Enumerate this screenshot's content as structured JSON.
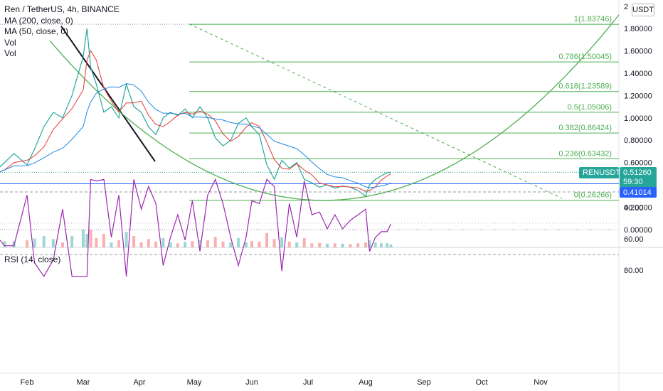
{
  "legend": {
    "symbol": "Ren / TetherUS, 4h, BINANCE",
    "ma200": "MA (200, close, 0)",
    "ma50": "MA (50, close, 0)",
    "vol1": "Vol",
    "vol2": "Vol"
  },
  "rsi_label": "RSI (14, close)",
  "currency_button": "USDT",
  "top_tick": "2",
  "price_tag": {
    "symbol": "RENUSDT",
    "price": "0.51260",
    "countdown": "59:30",
    "color": "#26a69a"
  },
  "level_tag": {
    "value": "0.41014",
    "color": "#2962ff"
  },
  "chart_data": [
    {
      "type": "line",
      "panel": "price",
      "y_ticks": [
        "0.00000",
        "0.20000",
        "0.40000",
        "0.60000",
        "0.80000",
        "1.00000",
        "1.20000",
        "1.40000",
        "1.60000",
        "1.80000"
      ],
      "y_range": [
        -0.05,
        2.05
      ],
      "x_ticks": [
        "Feb",
        "Mar",
        "Apr",
        "May",
        "Jun",
        "Jul",
        "Aug",
        "Sep",
        "Oct",
        "Nov"
      ],
      "fib_levels": [
        {
          "label": "1(1.83746)",
          "value": 1.83746
        },
        {
          "label": "0.786(1.50045)",
          "value": 1.50045
        },
        {
          "label": "0.618(1.23589)",
          "value": 1.23589
        },
        {
          "label": "0.5(1.05006)",
          "value": 1.05006
        },
        {
          "label": "0.382(0.86424)",
          "value": 0.86424
        },
        {
          "label": "0.236(0.63432)",
          "value": 0.63432
        },
        {
          "label": "0(0.26266)",
          "value": 0.26266
        }
      ],
      "price_series": [
        [
          "Jan 10",
          0.48
        ],
        [
          "Jan 15",
          0.52
        ],
        [
          "Jan 20",
          0.6
        ],
        [
          "Jan 25",
          0.68
        ],
        [
          "Feb 1",
          0.58
        ],
        [
          "Feb 5",
          0.72
        ],
        [
          "Feb 10",
          0.92
        ],
        [
          "Feb 15",
          1.05
        ],
        [
          "Feb 20",
          1.0
        ],
        [
          "Feb 25",
          1.2
        ],
        [
          "Mar 1",
          1.55
        ],
        [
          "Mar 3",
          1.8
        ],
        [
          "Mar 5",
          1.45
        ],
        [
          "Mar 8",
          1.3
        ],
        [
          "Mar 12",
          1.05
        ],
        [
          "Mar 16",
          1.1
        ],
        [
          "Mar 20",
          1.0
        ],
        [
          "Mar 24",
          1.3
        ],
        [
          "Mar 28",
          1.1
        ],
        [
          "Apr 2",
          1.05
        ],
        [
          "Apr 6",
          0.92
        ],
        [
          "Apr 10",
          0.85
        ],
        [
          "Apr 14",
          1.0
        ],
        [
          "Apr 18",
          1.05
        ],
        [
          "Apr 22",
          1.02
        ],
        [
          "Apr 26",
          1.08
        ],
        [
          "Apr 30",
          1.0
        ],
        [
          "May 4",
          1.1
        ],
        [
          "May 8",
          1.0
        ],
        [
          "May 12",
          0.82
        ],
        [
          "May 16",
          0.75
        ],
        [
          "May 20",
          0.8
        ],
        [
          "May 24",
          0.95
        ],
        [
          "May 28",
          1.0
        ],
        [
          "Jun 1",
          0.92
        ],
        [
          "Jun 5",
          0.85
        ],
        [
          "Jun 9",
          0.58
        ],
        [
          "Jun 13",
          0.45
        ],
        [
          "Jun 17",
          0.62
        ],
        [
          "Jun 21",
          0.55
        ],
        [
          "Jun 25",
          0.6
        ],
        [
          "Jun 29",
          0.45
        ],
        [
          "Jul 3",
          0.42
        ],
        [
          "Jul 7",
          0.38
        ],
        [
          "Jul 11",
          0.4
        ],
        [
          "Jul 15",
          0.37
        ],
        [
          "Jul 19",
          0.39
        ],
        [
          "Jul 23",
          0.38
        ],
        [
          "Jul 27",
          0.35
        ],
        [
          "Jul 31",
          0.3
        ],
        [
          "Aug 3",
          0.4
        ],
        [
          "Aug 6",
          0.45
        ],
        [
          "Aug 9",
          0.48
        ],
        [
          "Aug 12",
          0.51
        ],
        [
          "Aug 14",
          0.5126
        ]
      ],
      "ma50_color": "#e53935",
      "ma200_color": "#1e88e5"
    },
    {
      "type": "line",
      "panel": "rsi",
      "y_ticks": [
        "20.00",
        "40.00",
        "60.00",
        "80.00"
      ],
      "y_range": [
        13,
        88
      ],
      "bands": [
        30,
        70
      ],
      "color": "#9c27b0"
    }
  ]
}
